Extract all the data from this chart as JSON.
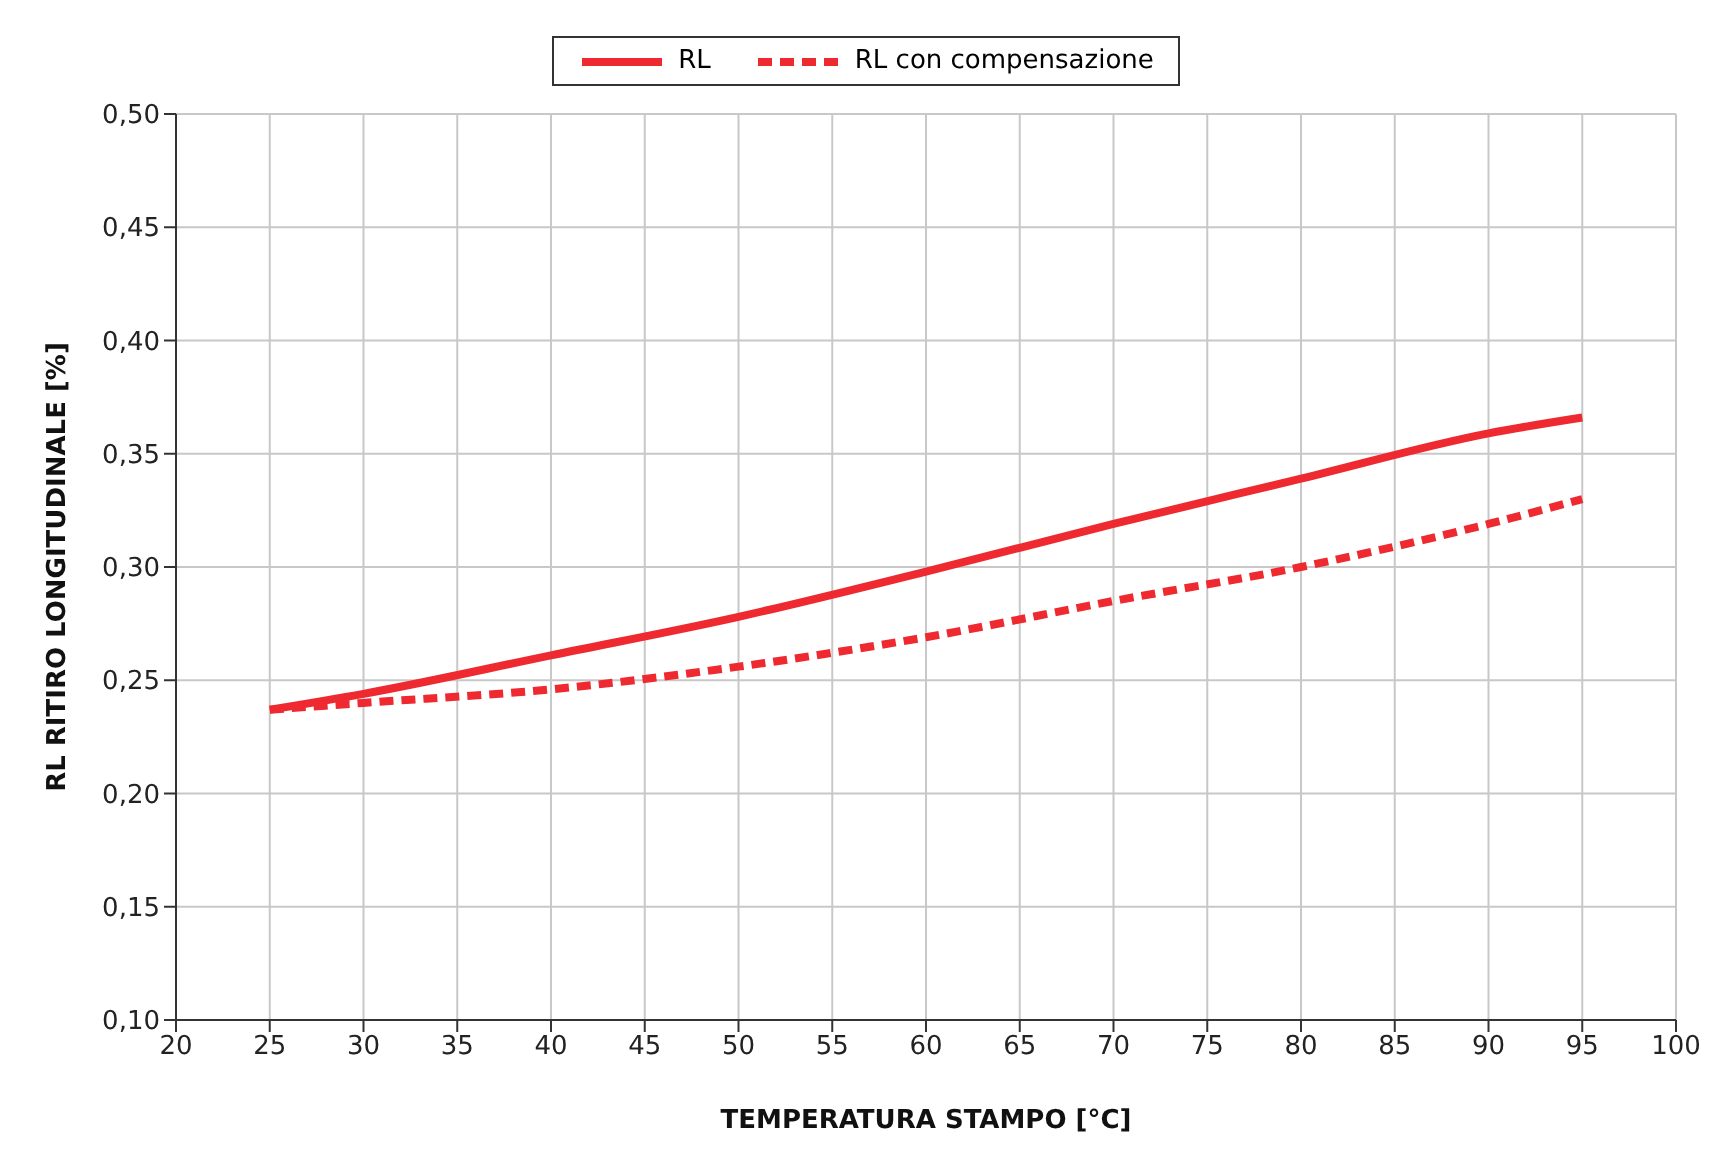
{
  "chart_data": {
    "type": "line",
    "xlabel": "TEMPERATURA STAMPO [°C]",
    "ylabel": "RL RITIRO  LONGITUDINALE [%]",
    "x": [
      25,
      30,
      40,
      50,
      60,
      70,
      80,
      90,
      95
    ],
    "series": [
      {
        "name": "RL",
        "color": "#ee2a30",
        "line_style": "solid",
        "values": [
          0.237,
          0.244,
          0.261,
          0.278,
          0.298,
          0.319,
          0.339,
          0.359,
          0.366
        ]
      },
      {
        "name": "RL con compensazione",
        "color": "#ee2a30",
        "line_style": "dashed",
        "values": [
          0.237,
          0.24,
          0.246,
          0.256,
          0.269,
          0.285,
          0.3,
          0.319,
          0.33
        ]
      }
    ],
    "xlim": [
      20,
      100
    ],
    "xticks": [
      20,
      25,
      30,
      35,
      40,
      45,
      50,
      55,
      60,
      65,
      70,
      75,
      80,
      85,
      90,
      95,
      100
    ],
    "ylim": [
      0.1,
      0.5
    ],
    "yticks": [
      {
        "value": 0.1,
        "label": "0,10"
      },
      {
        "value": 0.15,
        "label": "0,15"
      },
      {
        "value": 0.2,
        "label": "0,20"
      },
      {
        "value": 0.25,
        "label": "0,25"
      },
      {
        "value": 0.3,
        "label": "0,30"
      },
      {
        "value": 0.35,
        "label": "0,35"
      },
      {
        "value": 0.4,
        "label": "0,40"
      },
      {
        "value": 0.45,
        "label": "0,45"
      },
      {
        "value": 0.5,
        "label": "0,50"
      }
    ],
    "grid": true,
    "legend": "top",
    "marker": "none"
  }
}
